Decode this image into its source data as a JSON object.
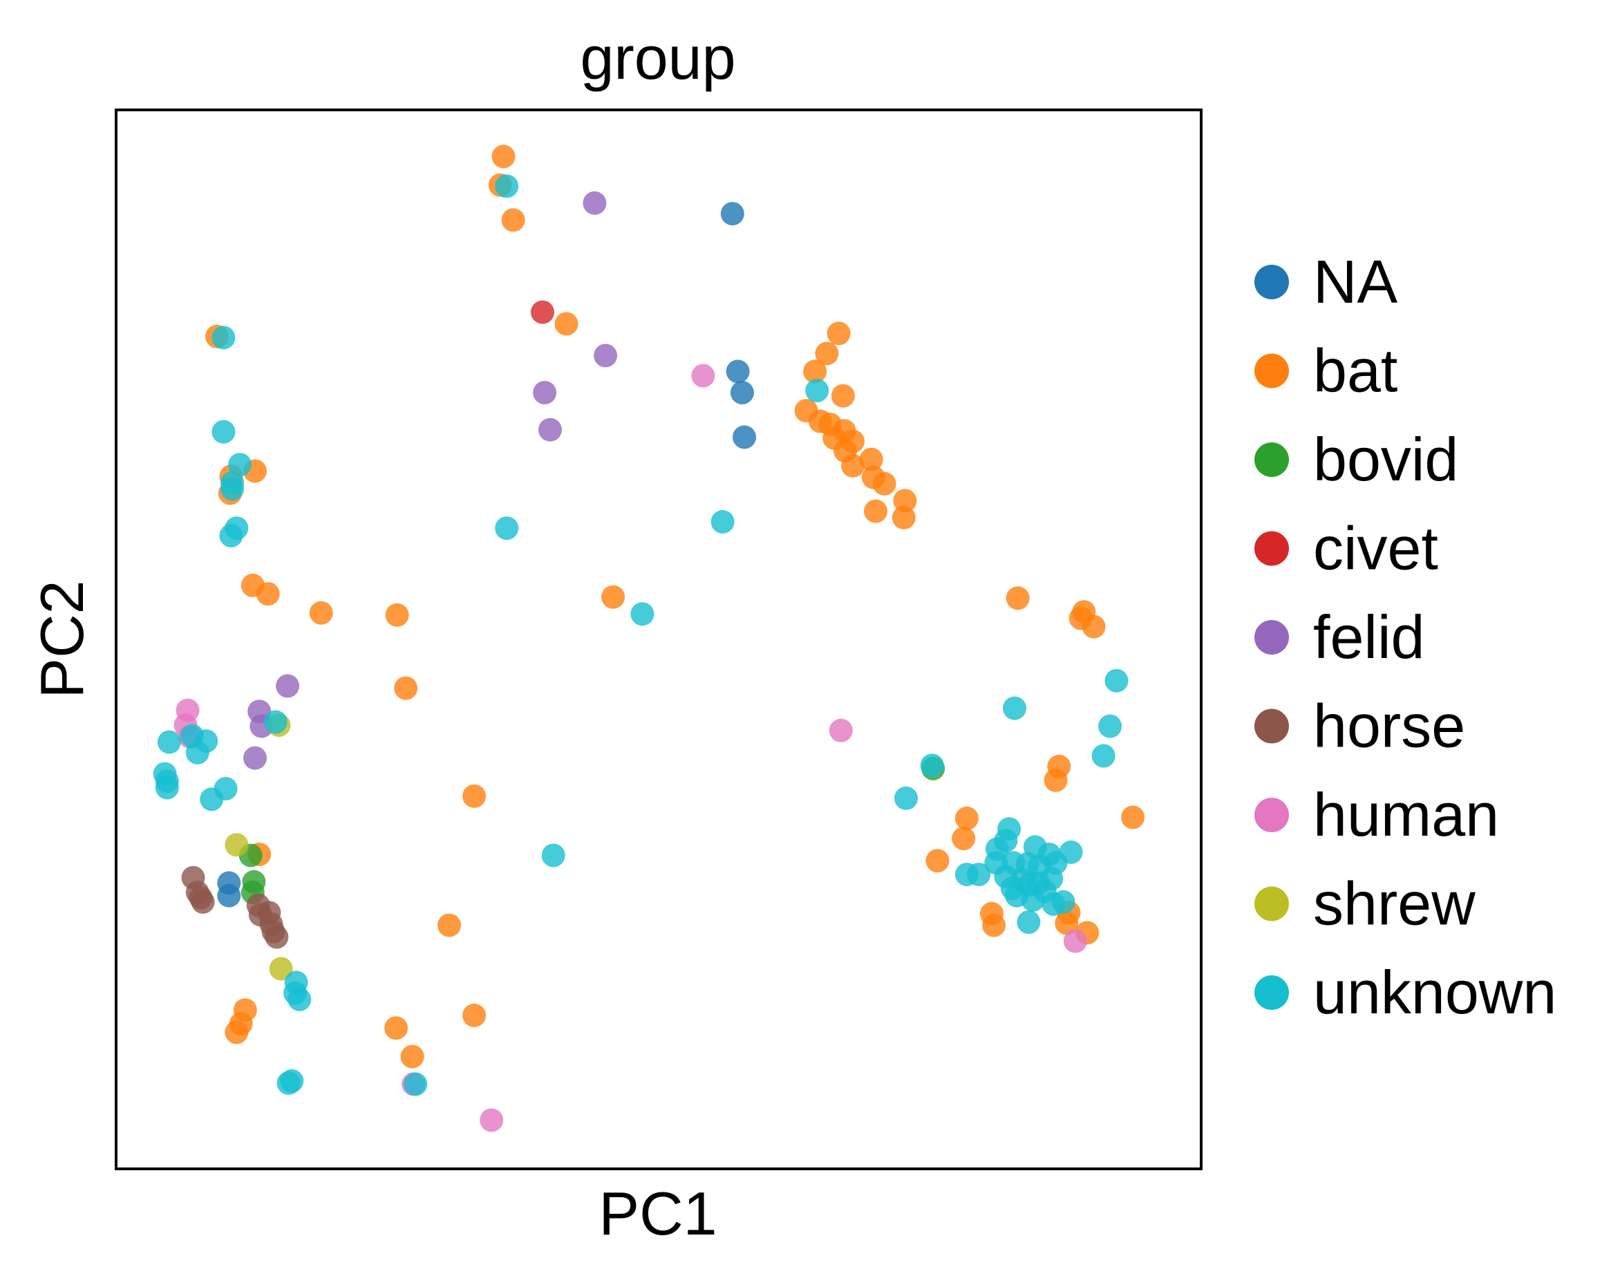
{
  "chart_data": {
    "type": "scatter",
    "title": "group",
    "xlabel": "PC1",
    "ylabel": "PC2",
    "xticks": [],
    "yticks": [],
    "xlim": [
      0,
      100
    ],
    "ylim": [
      0,
      100
    ],
    "grid": false,
    "legend_position": "right",
    "series": [
      {
        "name": "NA",
        "color": "#1f77b4",
        "points": [
          [
            56.8,
            90.2
          ],
          [
            57.3,
            75.3
          ],
          [
            57.7,
            73.3
          ],
          [
            57.9,
            69.1
          ],
          [
            10.4,
            27.0
          ],
          [
            10.4,
            25.8
          ]
        ]
      },
      {
        "name": "bat",
        "color": "#ff7f0e",
        "points": [
          [
            35.7,
            95.6
          ],
          [
            35.4,
            92.9
          ],
          [
            36.6,
            89.6
          ],
          [
            41.5,
            79.8
          ],
          [
            9.3,
            78.6
          ],
          [
            12.8,
            65.9
          ],
          [
            10.6,
            65.4
          ],
          [
            10.5,
            63.8
          ],
          [
            12.6,
            55.1
          ],
          [
            14.0,
            54.3
          ],
          [
            18.9,
            52.5
          ],
          [
            25.9,
            52.3
          ],
          [
            26.7,
            45.4
          ],
          [
            45.8,
            54.0
          ],
          [
            33.0,
            35.2
          ],
          [
            30.7,
            23.0
          ],
          [
            13.2,
            29.7
          ],
          [
            11.9,
            15.0
          ],
          [
            11.5,
            13.7
          ],
          [
            11.1,
            12.9
          ],
          [
            25.8,
            13.3
          ],
          [
            27.3,
            10.6
          ],
          [
            33.0,
            14.5
          ],
          [
            66.6,
            78.9
          ],
          [
            65.5,
            77.0
          ],
          [
            64.4,
            75.3
          ],
          [
            67.0,
            73.0
          ],
          [
            63.6,
            71.6
          ],
          [
            64.9,
            70.6
          ],
          [
            65.8,
            70.3
          ],
          [
            67.1,
            69.7
          ],
          [
            66.2,
            69.0
          ],
          [
            67.9,
            68.7
          ],
          [
            67.2,
            67.8
          ],
          [
            69.6,
            67.0
          ],
          [
            67.9,
            66.4
          ],
          [
            69.8,
            65.3
          ],
          [
            70.8,
            64.7
          ],
          [
            72.7,
            63.1
          ],
          [
            70.0,
            62.1
          ],
          [
            72.6,
            61.5
          ],
          [
            83.1,
            53.9
          ],
          [
            89.2,
            52.6
          ],
          [
            88.9,
            52.0
          ],
          [
            90.1,
            51.2
          ],
          [
            86.9,
            38.0
          ],
          [
            86.6,
            36.7
          ],
          [
            93.7,
            33.2
          ],
          [
            78.4,
            33.1
          ],
          [
            78.1,
            31.2
          ],
          [
            75.7,
            29.1
          ],
          [
            80.7,
            24.1
          ],
          [
            80.9,
            23.0
          ],
          [
            87.8,
            24.2
          ],
          [
            87.6,
            23.2
          ],
          [
            89.5,
            22.3
          ]
        ]
      },
      {
        "name": "bovid",
        "color": "#2ca02c",
        "points": [
          [
            12.4,
            29.6
          ],
          [
            12.7,
            27.1
          ],
          [
            12.6,
            26.1
          ],
          [
            75.3,
            37.8
          ]
        ]
      },
      {
        "name": "civet",
        "color": "#d62728",
        "points": [
          [
            39.3,
            80.9
          ]
        ]
      },
      {
        "name": "felid",
        "color": "#9467bd",
        "points": [
          [
            44.1,
            91.2
          ],
          [
            45.1,
            76.8
          ],
          [
            39.5,
            73.3
          ],
          [
            40.0,
            69.8
          ],
          [
            15.8,
            45.6
          ],
          [
            13.2,
            43.2
          ],
          [
            13.4,
            41.8
          ],
          [
            12.8,
            38.8
          ]
        ]
      },
      {
        "name": "horse",
        "color": "#8c564b",
        "points": [
          [
            7.1,
            27.5
          ],
          [
            7.5,
            26.1
          ],
          [
            7.8,
            25.6
          ],
          [
            8.0,
            25.2
          ],
          [
            13.1,
            24.9
          ],
          [
            14.1,
            24.2
          ],
          [
            13.3,
            24.0
          ],
          [
            14.3,
            23.1
          ],
          [
            14.5,
            22.4
          ],
          [
            14.8,
            21.9
          ]
        ]
      },
      {
        "name": "human",
        "color": "#e377c2",
        "points": [
          [
            54.1,
            74.9
          ],
          [
            66.8,
            41.4
          ],
          [
            6.6,
            43.3
          ],
          [
            6.4,
            41.9
          ],
          [
            6.8,
            40.8
          ],
          [
            27.4,
            8.0
          ],
          [
            34.6,
            4.6
          ],
          [
            88.4,
            21.5
          ]
        ]
      },
      {
        "name": "shrew",
        "color": "#bcbd22",
        "points": [
          [
            15.0,
            41.9
          ],
          [
            11.1,
            30.6
          ],
          [
            15.2,
            18.9
          ]
        ]
      },
      {
        "name": "unknown",
        "color": "#17becf",
        "points": [
          [
            36.0,
            92.8
          ],
          [
            9.9,
            78.5
          ],
          [
            9.9,
            69.6
          ],
          [
            11.4,
            66.5
          ],
          [
            10.7,
            64.8
          ],
          [
            10.7,
            64.2
          ],
          [
            11.1,
            60.5
          ],
          [
            10.6,
            59.8
          ],
          [
            36.0,
            60.5
          ],
          [
            48.5,
            52.4
          ],
          [
            64.6,
            73.5
          ],
          [
            55.9,
            61.1
          ],
          [
            14.7,
            42.2
          ],
          [
            4.9,
            40.3
          ],
          [
            7.0,
            40.9
          ],
          [
            8.3,
            40.4
          ],
          [
            7.5,
            39.3
          ],
          [
            4.5,
            37.3
          ],
          [
            4.7,
            36.6
          ],
          [
            4.7,
            36.0
          ],
          [
            10.1,
            35.9
          ],
          [
            8.8,
            34.9
          ],
          [
            40.3,
            29.6
          ],
          [
            16.6,
            17.6
          ],
          [
            16.5,
            16.6
          ],
          [
            16.9,
            16.0
          ],
          [
            15.9,
            8.1
          ],
          [
            16.2,
            8.3
          ],
          [
            27.6,
            8.0
          ],
          [
            92.2,
            46.1
          ],
          [
            82.8,
            43.5
          ],
          [
            91.6,
            41.8
          ],
          [
            91.0,
            39.0
          ],
          [
            75.2,
            38.1
          ],
          [
            72.8,
            35.0
          ],
          [
            82.3,
            32.1
          ],
          [
            82.0,
            31.0
          ],
          [
            81.2,
            30.2
          ],
          [
            84.7,
            30.4
          ],
          [
            86.0,
            29.7
          ],
          [
            88.0,
            29.9
          ],
          [
            81.1,
            28.9
          ],
          [
            82.7,
            28.9
          ],
          [
            84.0,
            28.8
          ],
          [
            85.1,
            28.6
          ],
          [
            86.6,
            28.9
          ],
          [
            78.4,
            27.8
          ],
          [
            79.5,
            27.8
          ],
          [
            82.0,
            27.6
          ],
          [
            83.5,
            27.3
          ],
          [
            85.0,
            27.0
          ],
          [
            86.2,
            27.4
          ],
          [
            82.6,
            26.5
          ],
          [
            84.1,
            26.8
          ],
          [
            85.6,
            26.2
          ],
          [
            83.0,
            25.8
          ],
          [
            84.5,
            25.4
          ],
          [
            86.4,
            25.0
          ],
          [
            87.3,
            25.2
          ],
          [
            84.1,
            23.3
          ]
        ]
      }
    ]
  }
}
